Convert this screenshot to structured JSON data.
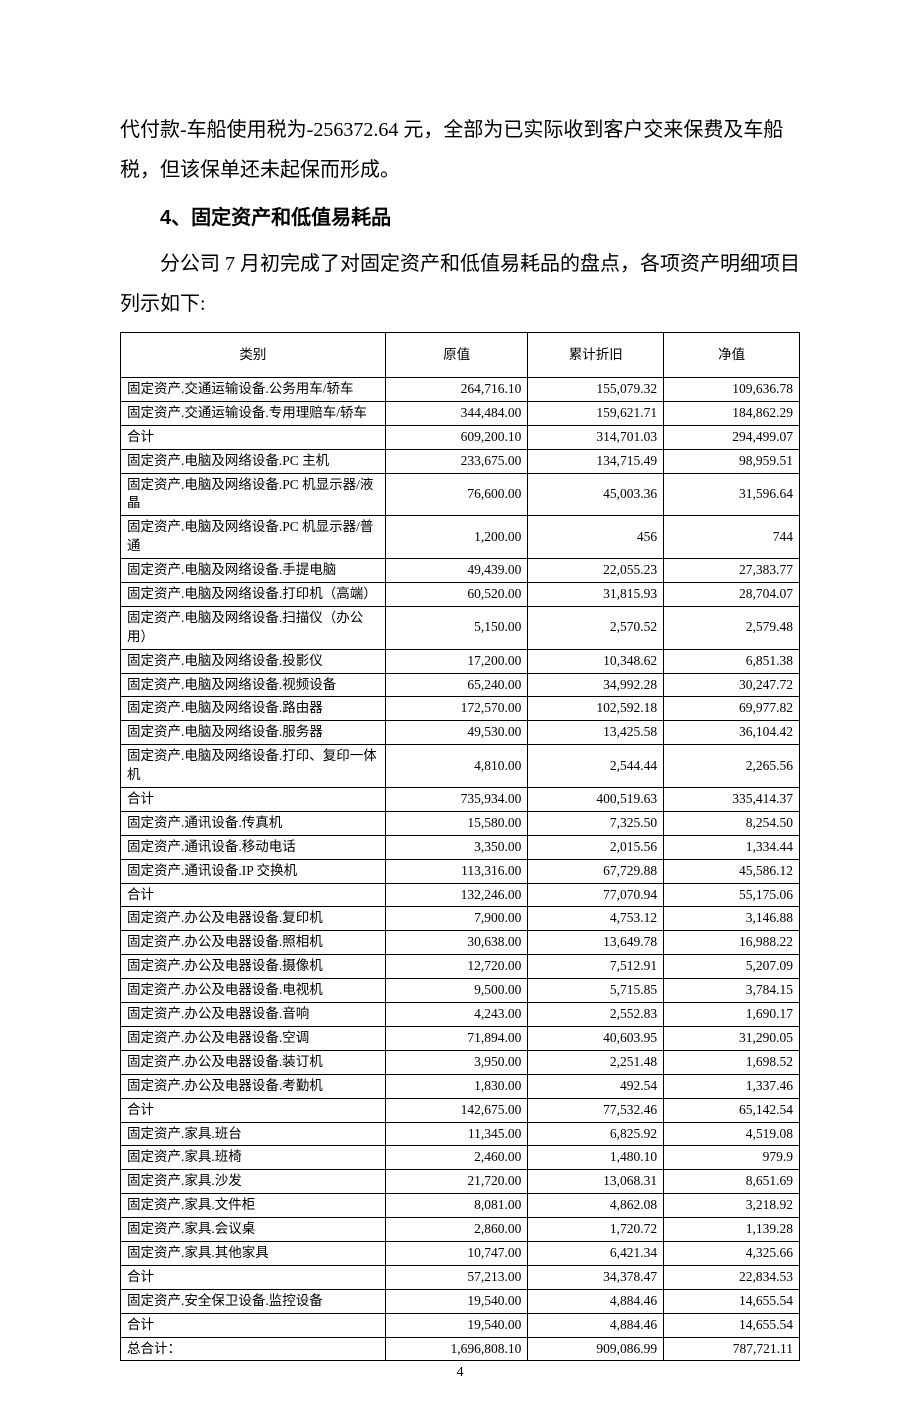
{
  "text": {
    "para1": "代付款-车船使用税为-256372.64 元，全部为已实际收到客户交来保费及车船税，但该保单还未起保而形成。",
    "heading": "4、固定资产和低值易耗品",
    "para2": "分公司 7 月初完成了对固定资产和低值易耗品的盘点，各项资产明细项目列示如下:"
  },
  "table": {
    "headers": [
      "类别",
      "原值",
      "累计折旧",
      "净值"
    ],
    "rows": [
      [
        "固定资产.交通运输设备.公务用车/轿车",
        "264,716.10",
        "155,079.32",
        "109,636.78"
      ],
      [
        "固定资产.交通运输设备.专用理赔车/轿车",
        "344,484.00",
        "159,621.71",
        "184,862.29"
      ],
      [
        "合计",
        "609,200.10",
        "314,701.03",
        "294,499.07"
      ],
      [
        "固定资产.电脑及网络设备.PC 主机",
        "233,675.00",
        "134,715.49",
        "98,959.51"
      ],
      [
        "固定资产.电脑及网络设备.PC 机显示器/液晶",
        "76,600.00",
        "45,003.36",
        "31,596.64"
      ],
      [
        "固定资产.电脑及网络设备.PC 机显示器/普通",
        "1,200.00",
        "456",
        "744"
      ],
      [
        "固定资产.电脑及网络设备.手提电脑",
        "49,439.00",
        "22,055.23",
        "27,383.77"
      ],
      [
        "固定资产.电脑及网络设备.打印机（高端）",
        "60,520.00",
        "31,815.93",
        "28,704.07"
      ],
      [
        "固定资产.电脑及网络设备.扫描仪（办公用）",
        "5,150.00",
        "2,570.52",
        "2,579.48"
      ],
      [
        "固定资产.电脑及网络设备.投影仪",
        "17,200.00",
        "10,348.62",
        "6,851.38"
      ],
      [
        "固定资产.电脑及网络设备.视频设备",
        "65,240.00",
        "34,992.28",
        "30,247.72"
      ],
      [
        "固定资产.电脑及网络设备.路由器",
        "172,570.00",
        "102,592.18",
        "69,977.82"
      ],
      [
        "固定资产.电脑及网络设备.服务器",
        "49,530.00",
        "13,425.58",
        "36,104.42"
      ],
      [
        "固定资产.电脑及网络设备.打印、复印一体机",
        "4,810.00",
        "2,544.44",
        "2,265.56"
      ],
      [
        "合计",
        "735,934.00",
        "400,519.63",
        "335,414.37"
      ],
      [
        "固定资产.通讯设备.传真机",
        "15,580.00",
        "7,325.50",
        "8,254.50"
      ],
      [
        "固定资产.通讯设备.移动电话",
        "3,350.00",
        "2,015.56",
        "1,334.44"
      ],
      [
        "固定资产.通讯设备.IP 交换机",
        "113,316.00",
        "67,729.88",
        "45,586.12"
      ],
      [
        "合计",
        "132,246.00",
        "77,070.94",
        "55,175.06"
      ],
      [
        "固定资产.办公及电器设备.复印机",
        "7,900.00",
        "4,753.12",
        "3,146.88"
      ],
      [
        "固定资产.办公及电器设备.照相机",
        "30,638.00",
        "13,649.78",
        "16,988.22"
      ],
      [
        "固定资产.办公及电器设备.摄像机",
        "12,720.00",
        "7,512.91",
        "5,207.09"
      ],
      [
        "固定资产.办公及电器设备.电视机",
        "9,500.00",
        "5,715.85",
        "3,784.15"
      ],
      [
        "固定资产.办公及电器设备.音响",
        "4,243.00",
        "2,552.83",
        "1,690.17"
      ],
      [
        "固定资产.办公及电器设备.空调",
        "71,894.00",
        "40,603.95",
        "31,290.05"
      ],
      [
        "固定资产.办公及电器设备.装订机",
        "3,950.00",
        "2,251.48",
        "1,698.52"
      ],
      [
        "固定资产.办公及电器设备.考勤机",
        "1,830.00",
        "492.54",
        "1,337.46"
      ],
      [
        "合计",
        "142,675.00",
        "77,532.46",
        "65,142.54"
      ],
      [
        "固定资产.家具.班台",
        "11,345.00",
        "6,825.92",
        "4,519.08"
      ],
      [
        "固定资产.家具.班椅",
        "2,460.00",
        "1,480.10",
        "979.9"
      ],
      [
        "固定资产.家具.沙发",
        "21,720.00",
        "13,068.31",
        "8,651.69"
      ],
      [
        "固定资产.家具.文件柜",
        "8,081.00",
        "4,862.08",
        "3,218.92"
      ],
      [
        "固定资产.家具.会议桌",
        "2,860.00",
        "1,720.72",
        "1,139.28"
      ],
      [
        "固定资产.家具.其他家具",
        "10,747.00",
        "6,421.34",
        "4,325.66"
      ],
      [
        "合计",
        "57,213.00",
        "34,378.47",
        "22,834.53"
      ],
      [
        "固定资产.安全保卫设备.监控设备",
        "19,540.00",
        "4,884.46",
        "14,655.54"
      ],
      [
        "合计",
        "19,540.00",
        "4,884.46",
        "14,655.54"
      ],
      [
        "总合计：",
        "1,696,808.10",
        "909,086.99",
        "787,721.11"
      ]
    ]
  },
  "page_number": "4"
}
